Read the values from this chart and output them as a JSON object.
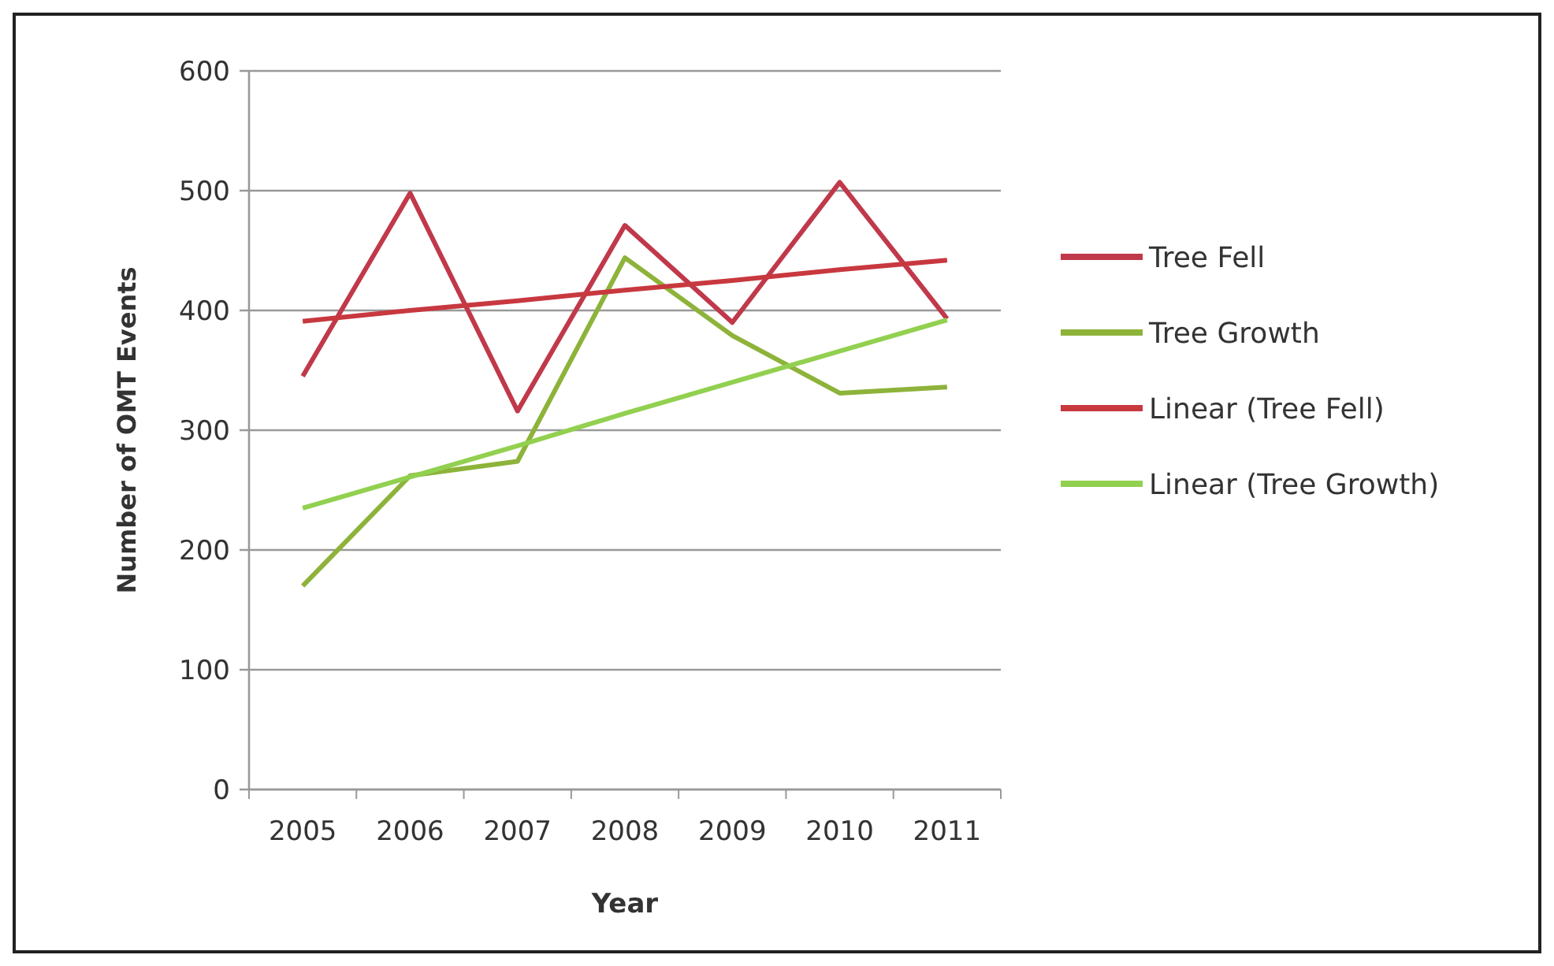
{
  "chart_data": {
    "type": "line",
    "xlabel": "Year",
    "ylabel": "Number of OMT Events",
    "categories": [
      "2005",
      "2006",
      "2007",
      "2008",
      "2009",
      "2010",
      "2011"
    ],
    "series": [
      {
        "name": "Tree Fell",
        "color": "#c0394a",
        "values": [
          345,
          498,
          316,
          471,
          390,
          507,
          393
        ]
      },
      {
        "name": "Tree Growth",
        "color": "#8db33a",
        "values": [
          170,
          262,
          274,
          444,
          379,
          331,
          336
        ]
      },
      {
        "name": "Linear (Tree Fell)",
        "color": "#c8383f",
        "values": [
          391,
          400,
          408,
          417,
          425,
          434,
          442
        ]
      },
      {
        "name": "Linear (Tree Growth)",
        "color": "#92d050",
        "values": [
          235,
          261,
          287,
          314,
          340,
          366,
          392
        ]
      }
    ],
    "ylim": [
      0,
      600
    ],
    "yticks": [
      0,
      100,
      200,
      300,
      400,
      500,
      600
    ],
    "grid": "y",
    "legend": "right",
    "marker": "none",
    "line_style": "solid"
  }
}
